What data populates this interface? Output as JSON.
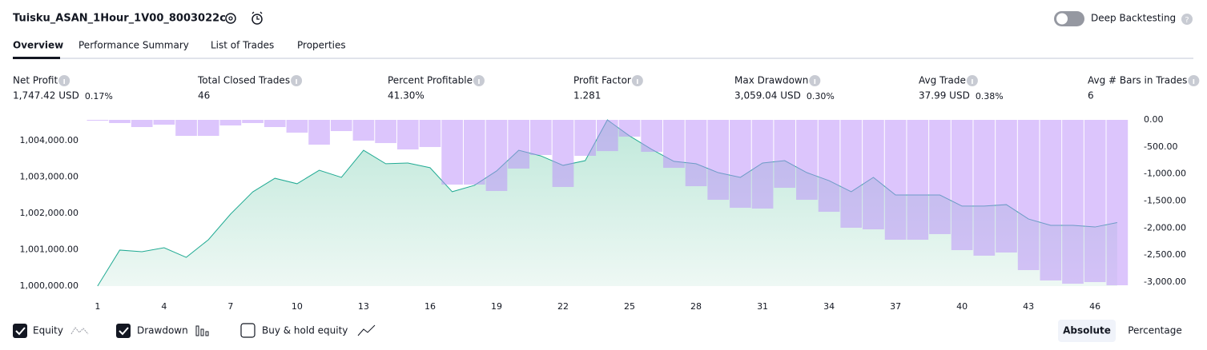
{
  "header": {
    "title": "Tuisku_ASAN_1Hour_1V00_8003022c",
    "toggle_label": "Deep Backtesting"
  },
  "tabs": [
    "Overview",
    "Performance Summary",
    "List of Trades",
    "Properties"
  ],
  "metrics": [
    {
      "label": "Net Profit",
      "value": "1,747.42 USD",
      "percent": "0.17%",
      "color": "#22ab94"
    },
    {
      "label": "Total Closed Trades",
      "value": "46",
      "color": "#131722"
    },
    {
      "label": "Percent Profitable",
      "value": "41.30%",
      "color": "#22ab94"
    },
    {
      "label": "Profit Factor",
      "value": "1.281",
      "color": "#22ab94"
    },
    {
      "label": "Max Drawdown",
      "value": "3,059.04 USD",
      "percent": "0.30%",
      "color": "#f23645"
    },
    {
      "label": "Avg Trade",
      "value": "37.99 USD",
      "percent": "0.38%",
      "color": "#22ab94"
    },
    {
      "label": "Avg # Bars in Trades",
      "value": "6",
      "color": "#131722"
    }
  ],
  "chart_data": {
    "type": "area",
    "x": [
      1,
      2,
      3,
      4,
      5,
      6,
      7,
      8,
      9,
      10,
      11,
      12,
      13,
      14,
      15,
      16,
      17,
      18,
      19,
      20,
      21,
      22,
      23,
      24,
      25,
      26,
      27,
      28,
      29,
      30,
      31,
      32,
      33,
      34,
      35,
      36,
      37,
      38,
      39,
      40,
      41,
      42,
      43,
      44,
      45,
      46,
      47
    ],
    "xlim": [
      0.5,
      47.8
    ],
    "xticks": [
      1,
      4,
      7,
      10,
      13,
      16,
      19,
      22,
      25,
      28,
      31,
      34,
      37,
      40,
      43,
      46
    ],
    "ylim": [
      1000000,
      1004571
    ],
    "yticks": [
      {
        "value": 1000000,
        "label": "1,000,000.00"
      },
      {
        "value": 1001000,
        "label": "1,001,000.00"
      },
      {
        "value": 1002000,
        "label": "1,002,000.00"
      },
      {
        "value": 1003000,
        "label": "1,003,000.00"
      },
      {
        "value": 1004000,
        "label": "1,004,000.00"
      }
    ],
    "y2lim": [
      -3074,
      0
    ],
    "y2ticks": [
      {
        "value": 0,
        "label": "0.00"
      },
      {
        "value": -500,
        "label": "-500.00"
      },
      {
        "value": -1000,
        "label": "-1,000.00"
      },
      {
        "value": -1500,
        "label": "-1,500.00"
      },
      {
        "value": -2000,
        "label": "-2,000.00"
      },
      {
        "value": -2500,
        "label": "-2,500.00"
      },
      {
        "value": -3000,
        "label": "-3,000.00"
      }
    ],
    "grid": false,
    "series": [
      {
        "name": "Equity",
        "type": "area",
        "color": "#22ab94",
        "visible": true,
        "values": [
          1000000,
          1000990,
          1000945,
          1001055,
          1000790,
          1001275,
          1001980,
          1002590,
          1002965,
          1002815,
          1003185,
          1002990,
          1003735,
          1003365,
          1003385,
          1003255,
          1002595,
          1002770,
          1003165,
          1003735,
          1003580,
          1003320,
          1003450,
          1004570,
          1004130,
          1003760,
          1003430,
          1003365,
          1003120,
          1002990,
          1003385,
          1003450,
          1003120,
          1002900,
          1002595,
          1002990,
          1002505,
          1002505,
          1002505,
          1002200,
          1002200,
          1002240,
          1001845,
          1001670,
          1001670,
          1001625,
          1001747
        ]
      },
      {
        "name": "Drawdown",
        "type": "bar",
        "axis": "y2",
        "color": "#b98cf9",
        "visible": true,
        "values": [
          -15,
          -59,
          -133,
          -89,
          -296,
          -296,
          -103,
          -59,
          -133,
          -236,
          -458,
          -207,
          -384,
          -429,
          -547,
          -502,
          -1197,
          -1197,
          -1315,
          -901,
          -650,
          -1241,
          -665,
          -577,
          -310,
          -591,
          -887,
          -1227,
          -1478,
          -1626,
          -1640,
          -1256,
          -1478,
          -1700,
          -1995,
          -2025,
          -2217,
          -2217,
          -2113,
          -2409,
          -2512,
          -2453,
          -2778,
          -2970,
          -3030,
          -3000,
          -3059
        ]
      }
    ],
    "buy_hold": {
      "name": "Buy & hold equity",
      "visible": false
    }
  },
  "scale_buttons": [
    "Absolute",
    "Percentage"
  ]
}
